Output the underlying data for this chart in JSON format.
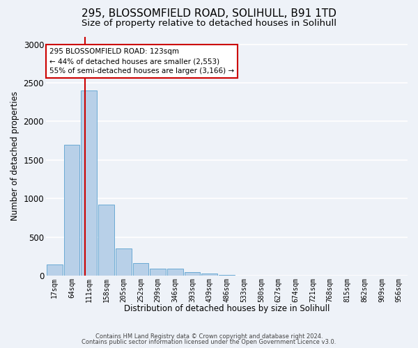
{
  "title1": "295, BLOSSOMFIELD ROAD, SOLIHULL, B91 1TD",
  "title2": "Size of property relative to detached houses in Solihull",
  "xlabel": "Distribution of detached houses by size in Solihull",
  "ylabel": "Number of detached properties",
  "bar_labels": [
    "17sqm",
    "64sqm",
    "111sqm",
    "158sqm",
    "205sqm",
    "252sqm",
    "299sqm",
    "346sqm",
    "393sqm",
    "439sqm",
    "486sqm",
    "533sqm",
    "580sqm",
    "627sqm",
    "674sqm",
    "721sqm",
    "768sqm",
    "815sqm",
    "862sqm",
    "909sqm",
    "956sqm"
  ],
  "bar_values": [
    150,
    1700,
    2400,
    920,
    350,
    160,
    90,
    90,
    50,
    30,
    10,
    5,
    2,
    0,
    0,
    0,
    0,
    0,
    0,
    0,
    0
  ],
  "bar_color": "#b8d0e8",
  "bar_edge_color": "#6aaad4",
  "vline_color": "#cc0000",
  "annotation_line1": "295 BLOSSOMFIELD ROAD: 123sqm",
  "annotation_line2": "← 44% of detached houses are smaller (2,553)",
  "annotation_line3": "55% of semi-detached houses are larger (3,166) →",
  "annotation_box_color": "#ffffff",
  "annotation_edge_color": "#cc0000",
  "ylim": [
    0,
    3100
  ],
  "yticks": [
    0,
    500,
    1000,
    1500,
    2000,
    2500,
    3000
  ],
  "footer1": "Contains HM Land Registry data © Crown copyright and database right 2024.",
  "footer2": "Contains public sector information licensed under the Open Government Licence v3.0.",
  "bg_color": "#eef2f8",
  "plot_bg_color": "#eef2f8",
  "grid_color": "#ffffff",
  "title1_fontsize": 11,
  "title2_fontsize": 9.5
}
